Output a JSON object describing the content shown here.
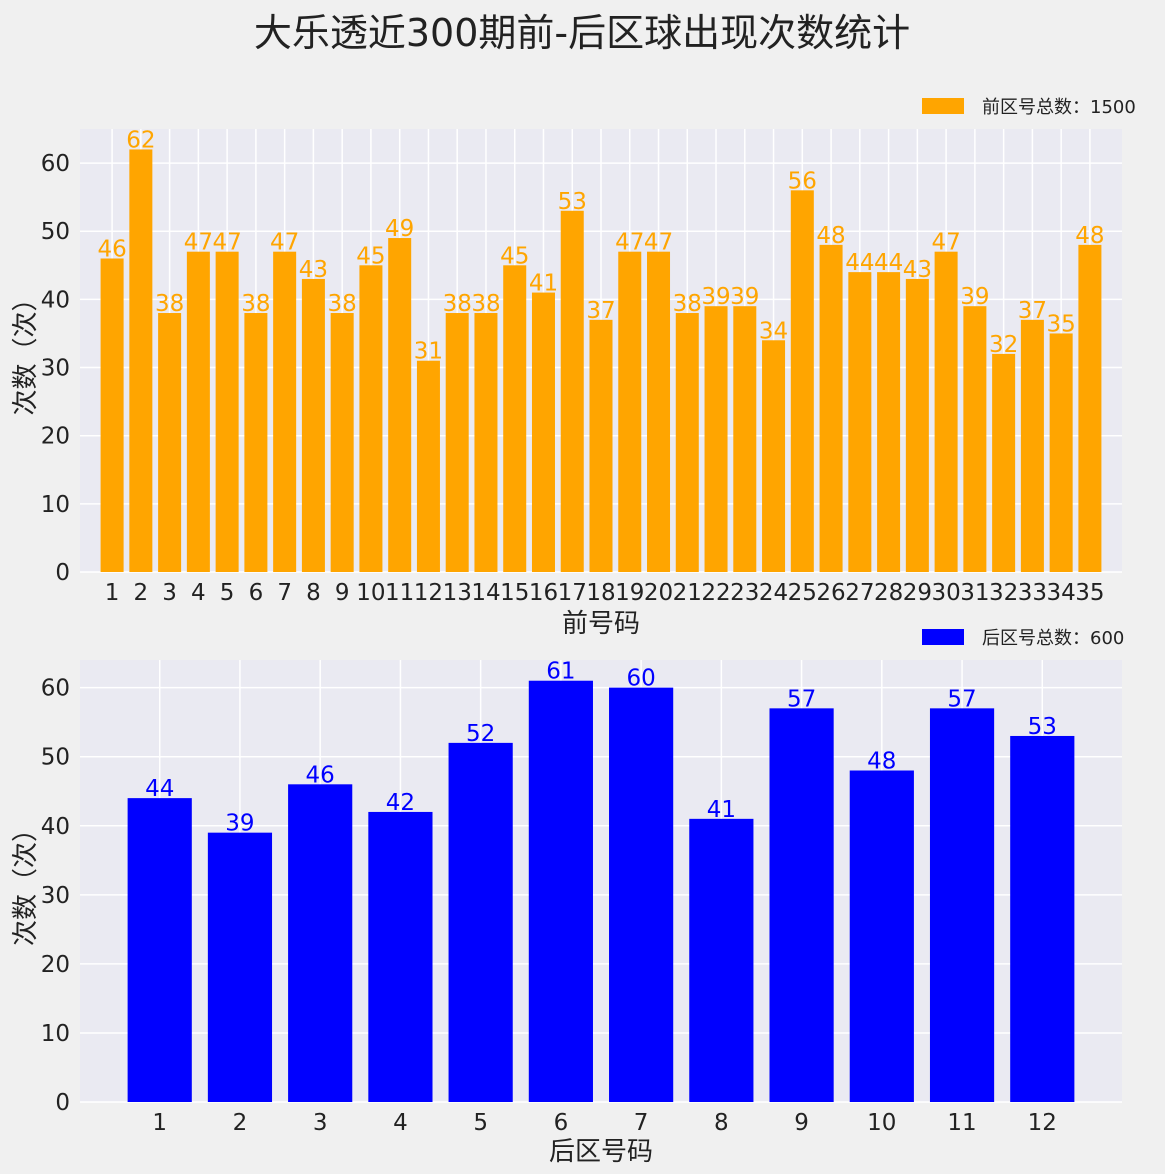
{
  "figure": {
    "title": "大乐透近300期前-后区球出现次数统计"
  },
  "chart_data": [
    {
      "type": "bar",
      "xlabel": "前号码",
      "ylabel": "次数（次）",
      "ylim": [
        0,
        65
      ],
      "yticks": [
        0,
        10,
        20,
        30,
        40,
        50,
        60
      ],
      "grid": true,
      "legend_position": "top-right, above plot",
      "categories": [
        "1",
        "2",
        "3",
        "4",
        "5",
        "6",
        "7",
        "8",
        "9",
        "10",
        "11",
        "12",
        "13",
        "14",
        "15",
        "16",
        "17",
        "18",
        "19",
        "20",
        "21",
        "22",
        "23",
        "24",
        "25",
        "26",
        "27",
        "28",
        "29",
        "30",
        "31",
        "32",
        "33",
        "34",
        "35"
      ],
      "series": [
        {
          "name": "前区号总数：1500",
          "color": "#FFA500",
          "values": [
            46,
            62,
            38,
            47,
            47,
            38,
            47,
            43,
            38,
            45,
            49,
            31,
            38,
            38,
            45,
            41,
            53,
            37,
            47,
            47,
            38,
            39,
            39,
            34,
            56,
            48,
            44,
            44,
            43,
            47,
            39,
            32,
            37,
            35,
            48
          ]
        }
      ]
    },
    {
      "type": "bar",
      "xlabel": "后区号码",
      "ylabel": "次数（次）",
      "ylim": [
        0,
        64
      ],
      "yticks": [
        0,
        10,
        20,
        30,
        40,
        50,
        60
      ],
      "grid": true,
      "legend_position": "top-right, above plot",
      "categories": [
        "1",
        "2",
        "3",
        "4",
        "5",
        "6",
        "7",
        "8",
        "9",
        "10",
        "11",
        "12"
      ],
      "series": [
        {
          "name": "后区号总数：600",
          "color": "#0000FF",
          "values": [
            44,
            39,
            46,
            42,
            52,
            61,
            60,
            41,
            57,
            48,
            57,
            53
          ]
        }
      ]
    }
  ]
}
